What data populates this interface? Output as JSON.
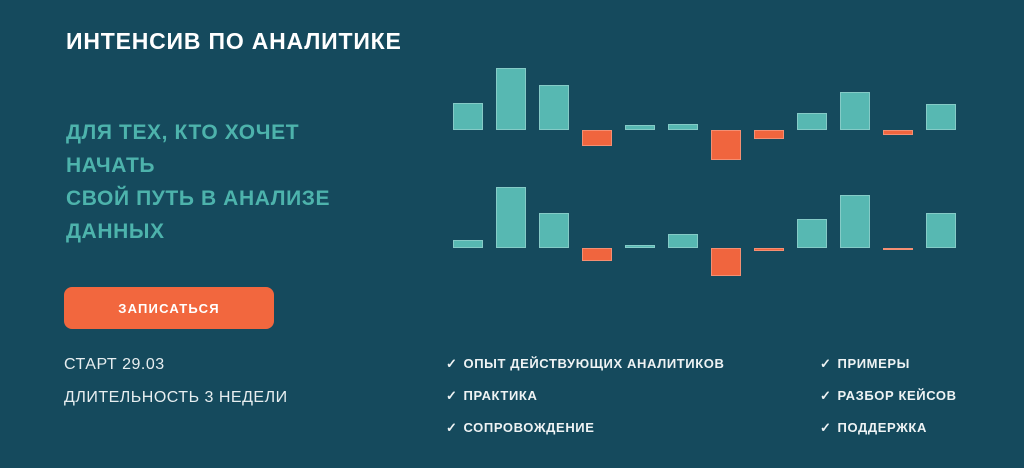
{
  "page": {
    "bg_color": "#154a5d",
    "accent_teal": "#57b8b2",
    "accent_orange": "#f0653e"
  },
  "hero": {
    "title": "ИНТЕНСИВ ПО АНАЛИТИКЕ",
    "subtitle_lines": {
      "0": "ДЛЯ ТЕХ, КТО ХОЧЕТ",
      "1": "НАЧАТЬ",
      "2": "СВОЙ ПУТЬ В АНАЛИЗЕ",
      "3": "ДАННЫХ"
    },
    "cta_label": "ЗАПИСАТЬСЯ",
    "start": "СТАРТ 29.03",
    "duration": "ДЛИТЕЛЬНОСТЬ 3 НЕДЕЛИ"
  },
  "features": {
    "check_glyph": "✓",
    "left": {
      "0": "ОПЫТ ДЕЙСТВУЮЩИХ АНАЛИТИКОВ",
      "1": "ПРАКТИКА",
      "2": "СОПРОВОЖДЕНИЕ"
    },
    "right": {
      "0": "ПРИМЕРЫ",
      "1": "РАЗБОР КЕЙСОВ",
      "2": "ПОДДЕРЖКА"
    }
  },
  "chart_data": {
    "type": "bar",
    "subtype": "decorative-waterfall",
    "title": "",
    "xlabel": "",
    "ylabel": "",
    "axes_visible": false,
    "grid": false,
    "legend": "none",
    "units": "pixels-above-or-below-baseline",
    "positive_color": "#57b8b2",
    "negative_color": "#f0653e",
    "series": [
      {
        "name": "top-row",
        "values": [
          27,
          62,
          45,
          -16,
          5,
          6,
          -30,
          -9,
          17,
          38,
          -5,
          26
        ]
      },
      {
        "name": "bottom-row",
        "values": [
          8,
          61,
          35,
          -13,
          3,
          14,
          -28,
          -3,
          29,
          53,
          -2,
          35
        ]
      }
    ]
  }
}
